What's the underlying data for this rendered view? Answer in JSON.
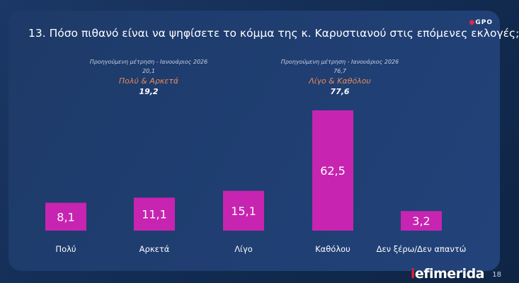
{
  "header": {
    "title": "13. Πόσο πιθανό είναι να ψηφίσετε το κόμμα της κ. Καρυστιανού στις επόμενες εκλογές;",
    "logo": "GPO"
  },
  "notes": [
    {
      "prev_label": "Προηγούμενη μέτρηση - Ιανουάριος 2026",
      "prev_value": "20,1",
      "group": "Πολύ & Αρκετά",
      "value": "19,2"
    },
    {
      "prev_label": "Προηγούμενη μέτρηση - Ιανουάριος 2026",
      "prev_value": "76,7",
      "group": "Λίγο & Καθόλου",
      "value": "77,6"
    }
  ],
  "chart_data": {
    "type": "bar",
    "title": "13. Πόσο πιθανό είναι να ψηφίσετε το κόμμα της κ. Καρυστιανού στις επόμενες εκλογές;",
    "categories": [
      "Πολύ",
      "Αρκετά",
      "Λίγο",
      "Καθόλου",
      "Δεν ξέρω/Δεν απαντώ"
    ],
    "values": [
      8.1,
      11.1,
      15.1,
      62.5,
      3.2
    ],
    "value_labels": [
      "8,1",
      "11,1",
      "15,1",
      "62,5",
      "3,2"
    ],
    "bar_color": "#c724b1",
    "grid": false
  },
  "footer": {
    "brand_i": "i",
    "brand_rest": "efimerida",
    "page": "18"
  }
}
